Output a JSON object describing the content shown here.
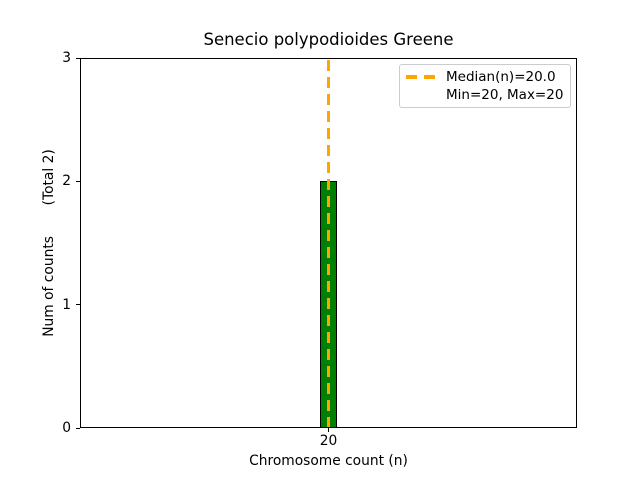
{
  "chart_data": {
    "type": "bar",
    "title": "Senecio polypodioides Greene",
    "xlabel": "Chromosome count (n)",
    "ylabel": "Num of counts       (Total 2)",
    "categories": [
      20
    ],
    "x_tick_labels": [
      "20"
    ],
    "values": [
      2
    ],
    "y_ticks": [
      "0",
      "1",
      "2",
      "3"
    ],
    "ylim": [
      0,
      3
    ],
    "grid": false,
    "median_line": {
      "x": 20,
      "style": "dashed"
    },
    "legend": {
      "position": "upper right",
      "entries": [
        {
          "label": "Median(n)=20.0",
          "marker": "orange-dashed-line"
        },
        {
          "label": "Min=20, Max=20",
          "marker": "none"
        }
      ]
    },
    "colors": {
      "bar_fill": "#008000",
      "bar_edge": "#000000",
      "median_line": "#FFA500",
      "axes": "#000000",
      "background": "#ffffff",
      "legend_border": "#cccccc"
    }
  }
}
